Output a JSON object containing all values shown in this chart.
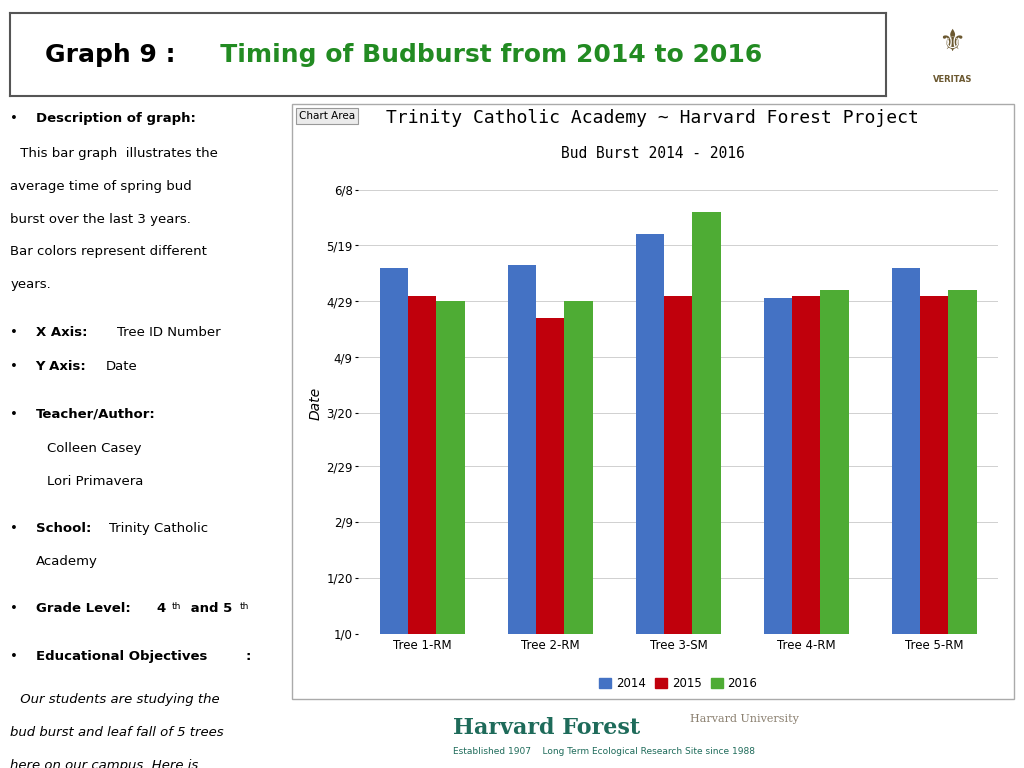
{
  "title_main": "Trinity Catholic Academy ~ Harvard Forest Project",
  "subtitle": "Bud Burst 2014 - 2016",
  "chart_area_label": "Chart Area",
  "ylabel": "Date",
  "trees": [
    "Tree 1-RM",
    "Tree 2-RM",
    "Tree 3-SM",
    "Tree 4-RM",
    "Tree 5-RM"
  ],
  "years": [
    "2014",
    "2015",
    "2016"
  ],
  "colors": [
    "#4472C4",
    "#C0000C",
    "#4EAC34"
  ],
  "bar_values_doy": {
    "2014": [
      131,
      132,
      143,
      120,
      131
    ],
    "2015": [
      121,
      113,
      121,
      121,
      121
    ],
    "2016": [
      119,
      119,
      151,
      123,
      123
    ]
  },
  "ytick_labels": [
    "1/0",
    "1/20",
    "2/9",
    "2/29",
    "3/20",
    "4/9",
    "4/29",
    "5/19",
    "6/8"
  ],
  "ytick_doy": [
    0,
    20,
    40,
    60,
    79,
    99,
    119,
    139,
    159
  ],
  "ylim": [
    0,
    165
  ],
  "background_color": "#FFFFFF",
  "plot_bg_color": "#FFFFFF",
  "grid_color": "#D0D0D0",
  "header_black": "Graph 9 :",
  "header_green": "   Timing of Budburst from 2014 to 2016",
  "header_green_color": "#228B22",
  "hf_bg": "#E8E6D5",
  "hf_teal": "#1E6B5A",
  "hf_gray": "#8B8070"
}
